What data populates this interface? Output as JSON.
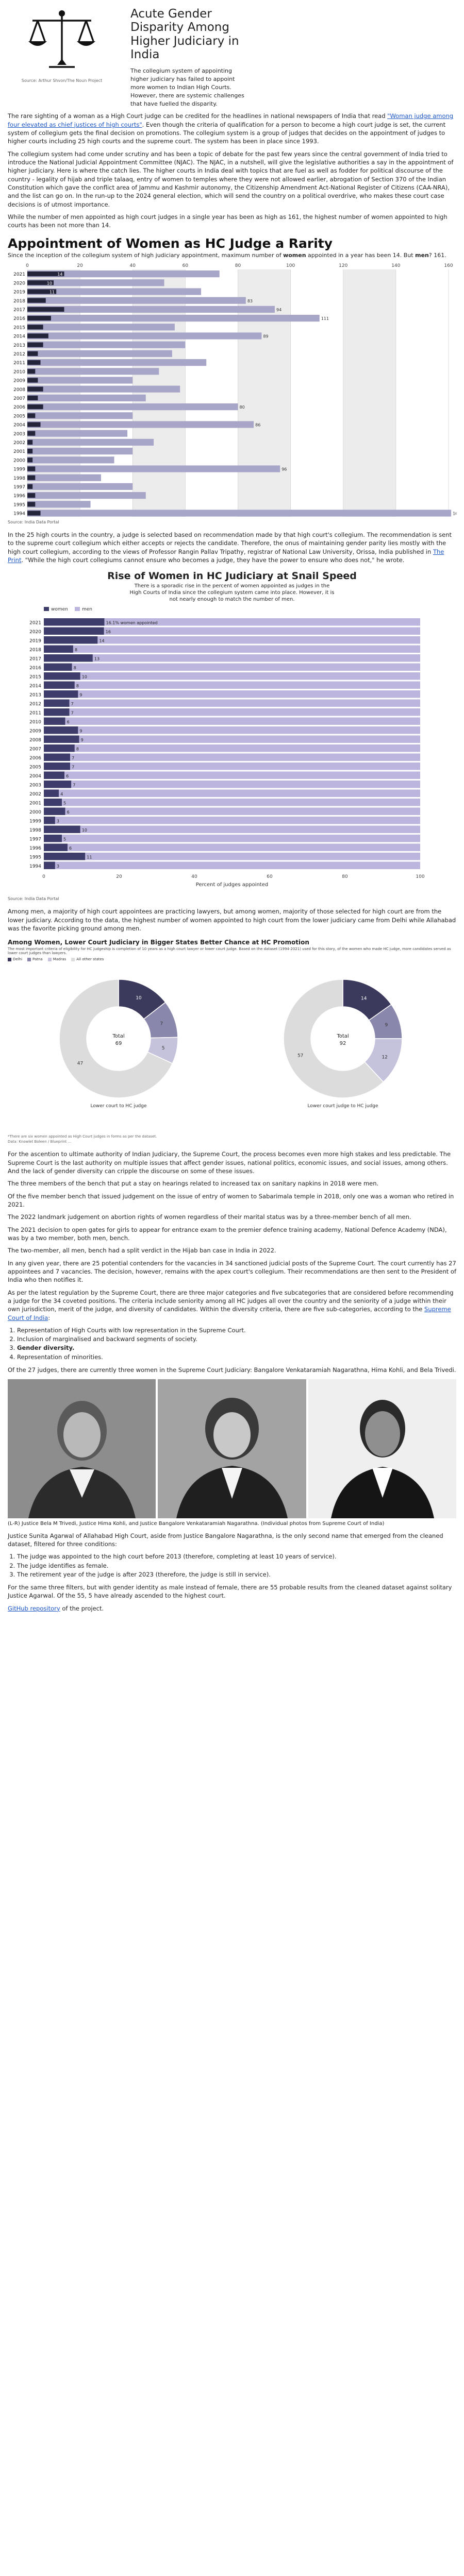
{
  "header": {
    "title": "Acute Gender Disparity Among Higher Judiciary in India",
    "intro": "The collegium system of appointing higher judiciary has failed to appoint more women to Indian High Courts. However, there are systemic challenges that have fuelled the disparity.",
    "image_source": "Source: Arthur Shvon/The Noun Project"
  },
  "article": {
    "p1_before": "The rare sighting of a woman as a High Court judge can be credited for the headlines in national newspapers of India that read ",
    "p1_link": "\"Woman judge among four elevated as chief justices of high courts\"",
    "p1_after": ". Even though the criteria of qualification for a person to become a high court judge is set, the current system of collegium gets the final decision on promotions. The collegium system is a group of judges that decides on the appointment of judges to higher courts including 25 high courts and the supreme court. The system has been in place since 1993.",
    "p2": "The collegium system had come under scrutiny and has been a topic of debate for the past few years since the central government of India tried to introduce the National Judicial Appointment Committee (NJAC). The NJAC, in a nutshell, will give the legislative authorities a say in the appointment of higher judiciary. Here is where the catch lies. The higher courts in India deal with topics that are fuel as well as fodder for political discourse of the country - legality of hijab and triple talaaq, entry of women to temples where they were not allowed earlier, abrogation of Section 370 of the Indian Constitution which gave the conflict area of Jammu and Kashmir autonomy, the Citizenship Amendment Act-National Register of Citizens (CAA-NRA), and the list can go on. In the run-up to the 2024 general election, which will send the country on a political overdrive, who makes these court case decisions is of utmost importance.",
    "p3": "While the number of men appointed as high court judges in a single year has been as high as 161, the highest number of women appointed to high courts has been not more than 14.",
    "p4_before": "In the 25 high courts in the country, a judge is selected based on recommendation made by that high court's collegium. The recommendation is sent to the supreme court collegium which either accepts or rejects the candidate. Therefore, the onus of maintaining gender parity lies mostly with the high court collegium, according to the views of Professor Rangin Pallav Tripathy, registrar of National Law University, Orissa, India published in ",
    "p4_link": "The Print",
    "p4_after": ". \"While the high court collegiums cannot ensure who becomes a judge, they have the power to ensure who does not,\" he wrote.",
    "p5": "Among men, a majority of high court appointees are practicing lawyers, but among women, majority of those selected for high court are from the lower judiciary. According to the data, the highest number of women appointed to high court from the lower judiciary came from Delhi while Allahabad was the favorite picking ground among men.",
    "p6": "For the ascention to ultimate authority of Indian Judiciary, the Supreme Court, the process becomes even more high stakes and less predictable. The Supreme Court is the last authority on multiple issues that affect gender issues, national politics, economic issues, and social issues, among others. And the lack of gender diversity can cripple the discourse on some of these issues.",
    "p7": "The three members of the bench that put a stay on hearings related to increased tax on sanitary napkins in 2018 were men.",
    "p8": "Of the five member bench that issued judgement on the issue of entry of women to Sabarimala temple in 2018, only one was a woman who retired in 2021.",
    "p9": "The 2022 landmark judgement on abortion rights of women regardless of their marital status was by a three-member bench of all men.",
    "p10": "The 2021 decision to open gates for girls to appear for entrance exam to the premier defence training academy, National Defence Academy (NDA), was by a two member, both men, bench.",
    "p11": "The two-member, all men, bench had a split verdict in the Hijab ban case in India in 2022.",
    "p12": "In any given year, there are 25 potential contenders for the vacancies in 34 sanctioned judicial posts of the Supreme Court. The court currently has 27 appointees and 7 vacancies. The decision, however, remains with the apex court's collegium. Their recommendations are then sent to the President of India who then notifies it.",
    "p13_before": "As per the latest regulation by the Supreme Court, there are three major categories and five subcategories that are considered before recommending a judge for the 34 coveted positions. The criteria include seniority among all HC judges all over the country and the seniority of a judge within their own jurisdiction, merit of the judge, and diversity of candidates. Within the diversity criteria, there are five sub-categories, according to the ",
    "p13_link": "Supreme Court of India",
    "p13_after": ":",
    "criteria": [
      "Representation of High Courts with low representation in the Supreme Court.",
      "Inclusion of marginalised and backward segments of society.",
      "Gender diversity.",
      "Representation of minorities."
    ],
    "p14": "Of the 27 judges, there are currently three women in the Supreme Court Judiciary: Bangalore Venkataramiah Nagarathna, Hima Kohli, and Bela Trivedi.",
    "photo_caption": "(L-R) Justice Bela M Trivedi, Justice Hima Kohli, and Justice Bangalore Venkataramiah Nagarathna. (Individual photos from Supreme Court of India)",
    "p15": "Justice Sunita Agarwal of Allahabad High Court, aside from Justice Bangalore Nagarathna, is the only second name that emerged from the cleaned dataset, filtered for three conditions:",
    "conditions": [
      "The judge was appointed to the high court before 2013 (therefore, completing at least 10 years of service).",
      "The judge identifies as female.",
      "The retirement year of the judge is after 2023 (therefore, the judge is still in service)."
    ],
    "p16": "For the same three filters, but with gender identity as male instead of female, there are 55 probable results from the cleaned dataset against solitary Justice Agarwal. Of the 55, 5 have already ascended to the highest court.",
    "github_link": "GitHub repository",
    "github_after": " of the project."
  },
  "chart_data": [
    {
      "type": "bar",
      "title": "Appointment of Women as HC Judge a Rarity",
      "subtitle_before": "Since the inception of the collegium system of high judiciary appointment, maximum number of ",
      "subtitle_bold": "women",
      "subtitle_after": " appointed in a year has been 14. But ",
      "subtitle_men": "men",
      "subtitle_end": "? 161.",
      "xaxis_ticks": [
        "0",
        "20",
        "40",
        "60",
        "80",
        "100",
        "120",
        "140",
        "160"
      ],
      "xlim": [
        0,
        160
      ],
      "categories": [
        "2021",
        "2020",
        "2019",
        "2018",
        "2017",
        "2016",
        "2015",
        "2014",
        "2013",
        "2012",
        "2011",
        "2010",
        "2009",
        "2008",
        "2007",
        "2006",
        "2005",
        "2004",
        "2003",
        "2002",
        "2001",
        "2000",
        "1999",
        "1998",
        "1997",
        "1996",
        "1995",
        "1994"
      ],
      "series": [
        {
          "name": "women",
          "color": "#24243a",
          "values": [
            14,
            10,
            11,
            7,
            14,
            9,
            6,
            8,
            6,
            4,
            5,
            3,
            4,
            6,
            4,
            6,
            3,
            5,
            3,
            2,
            2,
            2,
            3,
            3,
            2,
            3,
            3,
            5
          ]
        },
        {
          "name": "men",
          "color": "#a8a6c8",
          "values": [
            73,
            52,
            66,
            83,
            94,
            111,
            56,
            89,
            60,
            55,
            68,
            50,
            40,
            58,
            45,
            80,
            40,
            86,
            38,
            48,
            40,
            33,
            96,
            28,
            40,
            45,
            24,
            161
          ]
        }
      ],
      "data_labels": {
        "2021": "14",
        "2020": "10",
        "2019": "11",
        "2018": "83",
        "2017": "94",
        "2016": "111",
        "2014": "89",
        "2006": "80",
        "2004": "86",
        "1999": "96",
        "1994": "161"
      },
      "source": "Source: India Data Portal"
    },
    {
      "type": "bar",
      "title": "Rise of Women in HC Judiciary at Snail Speed",
      "subtitle": "There is a sporadic rise in the percent of women appointed as judges in the High Courts of India since the collegium system came into place. However, it is not nearly enough to match the number of men.",
      "legend": [
        "women",
        "men"
      ],
      "xlabel": "Percent of judges appointed",
      "xlim": [
        0,
        100
      ],
      "xaxis_ticks": [
        "0",
        "20",
        "40",
        "60",
        "80",
        "100"
      ],
      "categories": [
        "2021",
        "2020",
        "2019",
        "2018",
        "2017",
        "2016",
        "2015",
        "2014",
        "2013",
        "2012",
        "2011",
        "2010",
        "2009",
        "2008",
        "2007",
        "2006",
        "2005",
        "2004",
        "2003",
        "2002",
        "2001",
        "2000",
        "1999",
        "1998",
        "1997",
        "1996",
        "1995",
        "1994"
      ],
      "series": [
        {
          "name": "women",
          "color": "#3e3c6a",
          "values": [
            16.1,
            16,
            14.3,
            7.8,
            13,
            7.5,
            9.7,
            8.2,
            9.1,
            6.8,
            6.8,
            5.7,
            9.1,
            9.4,
            8.2,
            7,
            7,
            5.5,
            7.3,
            4,
            4.8,
            5.7,
            3,
            9.7,
            4.8,
            6.3,
            11,
            3
          ]
        },
        {
          "name": "men",
          "color": "#bcb6de",
          "values": [
            83.9,
            84,
            85.7,
            92.2,
            87,
            92.5,
            90.3,
            91.8,
            90.9,
            93.2,
            93.2,
            94.3,
            90.9,
            90.6,
            91.8,
            93,
            93,
            94.5,
            92.7,
            96,
            95.2,
            94.3,
            97,
            90.3,
            95.2,
            93.7,
            89,
            97
          ]
        }
      ],
      "data_labels": [
        "16.1% women appointed",
        "16",
        "14",
        "8",
        "13",
        "8",
        "10",
        "8",
        "9",
        "7",
        "7",
        "6",
        "9",
        "9",
        "8",
        "7",
        "7",
        "6",
        "7",
        "4",
        "5",
        "6",
        "3",
        "10",
        "5",
        "6",
        "11",
        "3"
      ],
      "source": "Source: India Data Portal"
    },
    {
      "type": "pie",
      "title": "Among Women, Lower Court Judiciary in Bigger States Better Chance at HC Promotion",
      "subtitle": "The most important criteria of eligibility for HC judgeship is completion of 10 years as a high court lawyer or lower court judge. Based on the dataset (1994-2021) used for this story, of the women who made HC judge, more candidates served as lower court judges than lawyers.",
      "legend": [
        "Delhi",
        "Patna",
        "Madras",
        "All other states"
      ],
      "colors": [
        "#3b3a5c",
        "#8a87ad",
        "#c5c2dc",
        "#dcdcdc"
      ],
      "charts": [
        {
          "label": "Lower court to HC judge",
          "total_label": "Total",
          "total": "69",
          "slices": [
            {
              "name": "Delhi",
              "value": 10
            },
            {
              "name": "Patna",
              "value": 7
            },
            {
              "name": "Madras",
              "value": 5
            },
            {
              "name": "All other states",
              "value": 47
            }
          ]
        },
        {
          "label": "Lower court judge to HC judge",
          "total_label": "Total",
          "total": "92",
          "slices": [
            {
              "name": "Delhi",
              "value": 14
            },
            {
              "name": "Patna",
              "value": 9
            },
            {
              "name": "Madras",
              "value": 12
            },
            {
              "name": "All other states",
              "value": 57
            }
          ]
        }
      ],
      "note": "*There are six women appointed as High Court judges in forms as per the dataset.",
      "source": "Data: Knowlet Boleen / Blueprint ..."
    }
  ]
}
